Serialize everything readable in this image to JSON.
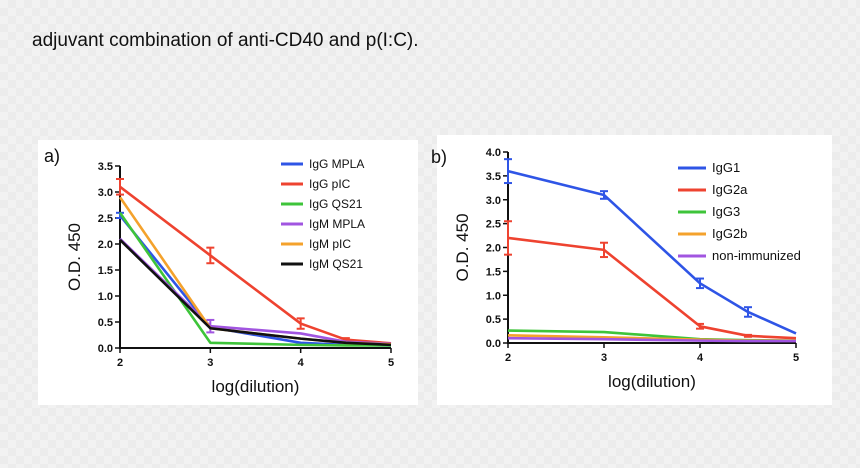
{
  "caption": "adjuvant combination of anti-CD40 and p(I:C).",
  "colors": {
    "blue": "#2f55e6",
    "red": "#ee4330",
    "green": "#3ec43a",
    "purple": "#a155e0",
    "orange": "#f4a22c",
    "black": "#111111"
  },
  "chart_data": [
    {
      "panel_label": "a)",
      "type": "line",
      "xlabel": "log(dilution)",
      "ylabel": "O.D. 450",
      "xlim": [
        2,
        5
      ],
      "ylim": [
        0,
        3.5
      ],
      "xticks": [
        "2",
        "3",
        "4",
        "5"
      ],
      "yticks": [
        "0.0",
        "0.5",
        "1.0",
        "1.5",
        "2.0",
        "2.5",
        "3.0",
        "3.5"
      ],
      "legend_position": "top-right",
      "series": [
        {
          "name": "IgG MPLA",
          "color": "blue",
          "x": [
            2,
            3,
            4,
            4.5,
            5
          ],
          "values": [
            2.55,
            0.4,
            0.1,
            0.06,
            0.05
          ],
          "err": [
            0.05,
            0,
            0,
            0,
            0
          ]
        },
        {
          "name": "IgG pIC",
          "color": "red",
          "x": [
            2,
            3,
            4,
            4.5,
            5
          ],
          "values": [
            3.1,
            1.78,
            0.47,
            0.16,
            0.09
          ],
          "err": [
            0.15,
            0.15,
            0.1,
            0.03,
            0
          ]
        },
        {
          "name": "IgG QS21",
          "color": "green",
          "x": [
            2,
            3,
            4,
            4.5,
            5
          ],
          "values": [
            2.6,
            0.1,
            0.06,
            0.05,
            0.05
          ],
          "err": [
            0,
            0,
            0,
            0,
            0
          ]
        },
        {
          "name": "IgM MPLA",
          "color": "purple",
          "x": [
            2,
            3,
            4,
            4.5,
            5
          ],
          "values": [
            2.1,
            0.42,
            0.28,
            0.12,
            0.08
          ],
          "err": [
            0,
            0.12,
            0,
            0,
            0
          ]
        },
        {
          "name": "IgM pIC",
          "color": "orange",
          "x": [
            2,
            3,
            4,
            4.5,
            5
          ],
          "values": [
            2.9,
            0.38,
            0.18,
            0.1,
            0.07
          ],
          "err": [
            0,
            0,
            0,
            0,
            0
          ]
        },
        {
          "name": "IgM QS21",
          "color": "black",
          "x": [
            2,
            3,
            4,
            4.5,
            5
          ],
          "values": [
            2.08,
            0.38,
            0.18,
            0.1,
            0.06
          ],
          "err": [
            0,
            0,
            0,
            0,
            0
          ]
        }
      ]
    },
    {
      "panel_label": "b)",
      "type": "line",
      "xlabel": "log(dilution)",
      "ylabel": "O.D. 450",
      "xlim": [
        2,
        5
      ],
      "ylim": [
        0,
        4
      ],
      "xticks": [
        "2",
        "3",
        "4",
        "5"
      ],
      "yticks": [
        "0.0",
        "0.5",
        "1.0",
        "1.5",
        "2.0",
        "2.5",
        "3.0",
        "3.5",
        "4.0"
      ],
      "legend_position": "top-right",
      "series": [
        {
          "name": "IgG1",
          "color": "blue",
          "x": [
            2,
            3,
            4,
            4.5,
            5
          ],
          "values": [
            3.6,
            3.1,
            1.25,
            0.65,
            0.2
          ],
          "err": [
            0.25,
            0.08,
            0.1,
            0.1,
            0
          ]
        },
        {
          "name": "IgG2a",
          "color": "red",
          "x": [
            2,
            3,
            4,
            4.5,
            5
          ],
          "values": [
            2.2,
            1.95,
            0.35,
            0.15,
            0.1
          ],
          "err": [
            0.35,
            0.15,
            0.05,
            0.02,
            0
          ]
        },
        {
          "name": "IgG3",
          "color": "green",
          "x": [
            2,
            3,
            4,
            4.5,
            5
          ],
          "values": [
            0.26,
            0.23,
            0.08,
            0.06,
            0.05
          ],
          "err": [
            0,
            0,
            0,
            0,
            0
          ]
        },
        {
          "name": "IgG2b",
          "color": "orange",
          "x": [
            2,
            3,
            4,
            4.5,
            5
          ],
          "values": [
            0.16,
            0.12,
            0.07,
            0.05,
            0.05
          ],
          "err": [
            0,
            0,
            0,
            0,
            0
          ]
        },
        {
          "name": "non-immunized",
          "color": "purple",
          "x": [
            2,
            3,
            4,
            4.5,
            5
          ],
          "values": [
            0.1,
            0.08,
            0.05,
            0.04,
            0.04
          ],
          "err": [
            0,
            0,
            0,
            0,
            0
          ]
        }
      ]
    }
  ]
}
